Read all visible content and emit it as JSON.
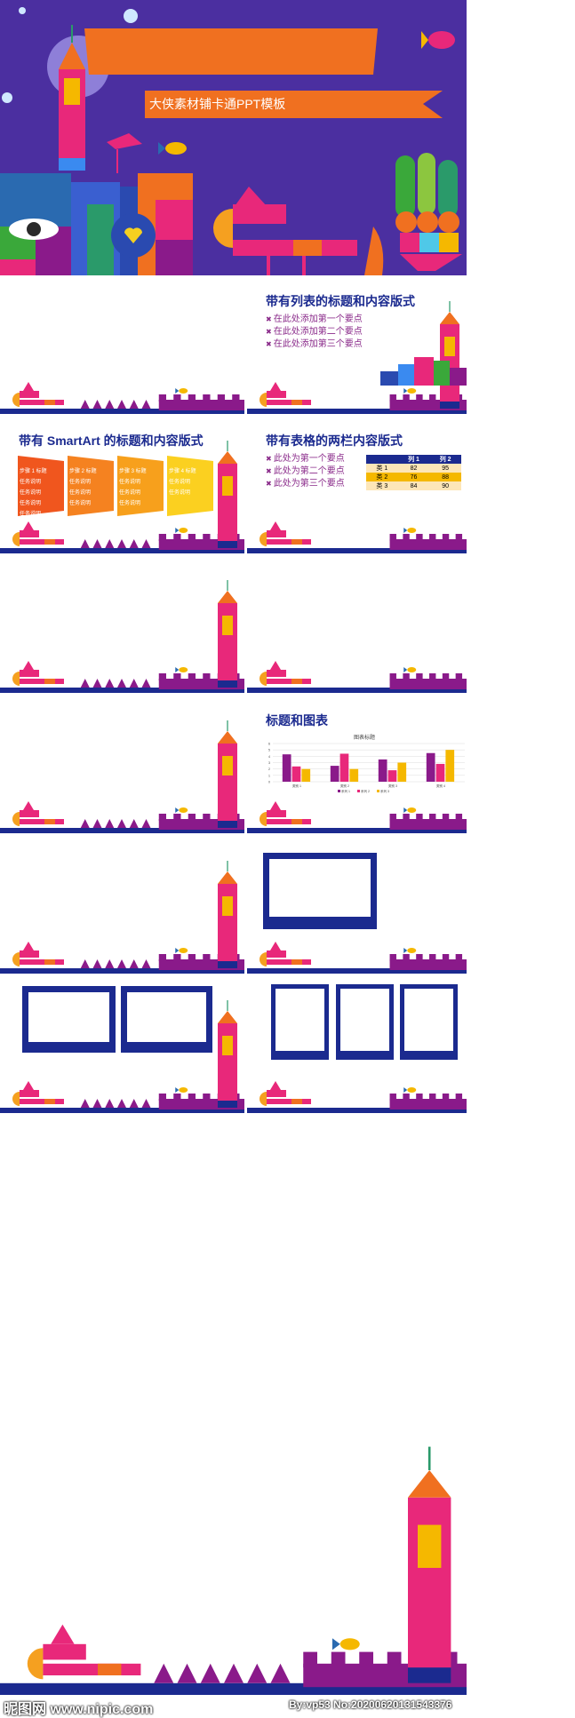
{
  "cover": {
    "banner_text": "大侠素材铺卡通PPT模板"
  },
  "slides": {
    "s2": {
      "title": "带有列表的标题和内容版式",
      "bullets": [
        "在此处添加第一个要点",
        "在此处添加第二个要点",
        "在此处添加第三个要点"
      ]
    },
    "s3": {
      "title": "带有 SmartArt 的标题和内容版式",
      "steps": [
        {
          "head": "步骤 1 标题",
          "items": [
            "任务说明",
            "任务说明",
            "任务说明",
            "任务说明"
          ]
        },
        {
          "head": "步骤 2 标题",
          "items": [
            "任务说明",
            "任务说明",
            "任务说明"
          ]
        },
        {
          "head": "步骤 3 标题",
          "items": [
            "任务说明",
            "任务说明",
            "任务说明"
          ]
        },
        {
          "head": "步骤 4 标题",
          "items": [
            "任务说明",
            "任务说明"
          ]
        }
      ]
    },
    "s4": {
      "title": "带有表格的两栏内容版式",
      "bullets": [
        "此处为第一个要点",
        "此处为第二个要点",
        "此处为第三个要点"
      ],
      "table": {
        "headers": [
          "",
          "列 1",
          "列 2"
        ],
        "rows": [
          [
            "类 1",
            "82",
            "95"
          ],
          [
            "类 2",
            "76",
            "88"
          ],
          [
            "类 3",
            "84",
            "90"
          ]
        ]
      }
    },
    "s8": {
      "title": "标题和图表"
    }
  },
  "chart_data": {
    "type": "bar",
    "title": "图表标题",
    "categories": [
      "类别 1",
      "类别 2",
      "类别 3",
      "类别 4"
    ],
    "series": [
      {
        "name": "系列 1",
        "values": [
          4.3,
          2.5,
          3.5,
          4.5
        ],
        "color": "#8a1a8a"
      },
      {
        "name": "系列 2",
        "values": [
          2.4,
          4.4,
          1.8,
          2.8
        ],
        "color": "#e8287a"
      },
      {
        "name": "系列 3",
        "values": [
          2,
          2,
          3,
          5
        ],
        "color": "#f5b800"
      }
    ],
    "ylim": [
      0,
      6
    ],
    "yticks": [
      "0",
      "1",
      "2",
      "3",
      "4",
      "5",
      "6"
    ],
    "legend": "bottom"
  },
  "watermark": {
    "left": "昵图网 www.nipic.com",
    "right": "By:vp53 No:20200620131543376"
  },
  "colors": {
    "navy": "#1b2a8f",
    "purple": "#8a1a8a",
    "pink": "#e8287a",
    "orange": "#f07020",
    "yellow": "#f5b800",
    "bg_blue": "#4b2fa0"
  }
}
